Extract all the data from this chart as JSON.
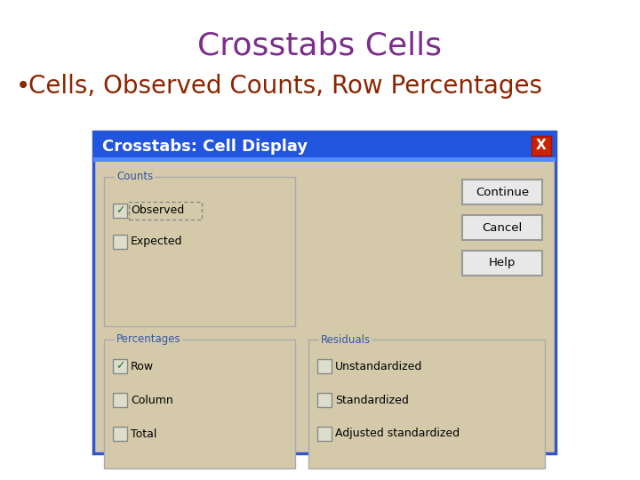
{
  "title": "Crosstabs Cells",
  "title_color": "#7B2D8B",
  "title_fontsize": 26,
  "bullet_text": "Cells, Observed Counts, Row Percentages",
  "bullet_color": "#8B2500",
  "bullet_fontsize": 20,
  "dialog_title": "Crosstabs: Cell Display",
  "dialog_title_color": "#FFFFFF",
  "dialog_bg": "#D4CAAA",
  "dialog_header_bg": "#2255DD",
  "bg_color": "#FFFFFF",
  "dialog_border_color": "#3355CC",
  "group_label_color": "#3355AA",
  "btn_bg": "#E8E8E8",
  "btn_border": "#999999",
  "check_color": "#227722",
  "close_btn_bg": "#CC2200",
  "counts_items": [
    "Observed",
    "Expected"
  ],
  "counts_checked": [
    true,
    false
  ],
  "pct_items": [
    "Row",
    "Column",
    "Total"
  ],
  "pct_checked": [
    true,
    false,
    false
  ],
  "res_items": [
    "Unstandardized",
    "Standardized",
    "Adjusted standardized"
  ],
  "res_checked": [
    false,
    false,
    false
  ],
  "btn_labels": [
    "Continue",
    "Cancel",
    "Help"
  ]
}
